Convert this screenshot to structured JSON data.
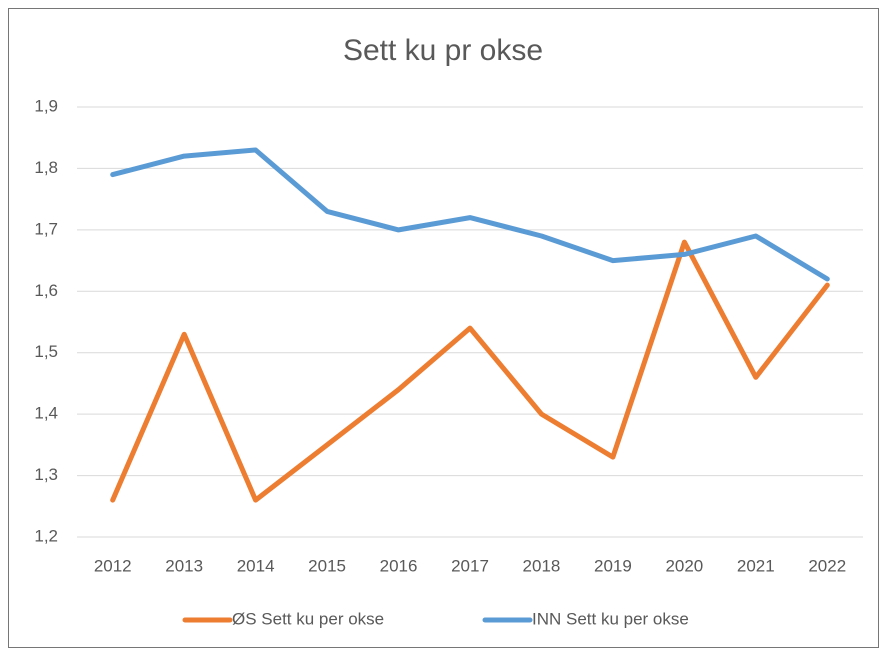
{
  "chart_data": {
    "type": "line",
    "title": "Sett ku pr okse",
    "categories": [
      "2012",
      "2013",
      "2014",
      "2015",
      "2016",
      "2017",
      "2018",
      "2019",
      "2020",
      "2021",
      "2022"
    ],
    "series": [
      {
        "name": "ØS Sett ku per okse",
        "color": "#ed7d31",
        "values": [
          1.26,
          1.53,
          1.26,
          1.35,
          1.44,
          1.54,
          1.4,
          1.33,
          1.68,
          1.46,
          1.61
        ]
      },
      {
        "name": "INN Sett ku per okse",
        "color": "#5b9bd5",
        "values": [
          1.79,
          1.82,
          1.83,
          1.73,
          1.7,
          1.72,
          1.69,
          1.65,
          1.66,
          1.69,
          1.62
        ]
      }
    ],
    "ylim": [
      1.2,
      1.9
    ],
    "yticks": [
      {
        "value": 1.2,
        "label": "1,2"
      },
      {
        "value": 1.3,
        "label": "1,3"
      },
      {
        "value": 1.4,
        "label": "1,4"
      },
      {
        "value": 1.5,
        "label": "1,5"
      },
      {
        "value": 1.6,
        "label": "1,6"
      },
      {
        "value": 1.7,
        "label": "1,7"
      },
      {
        "value": 1.8,
        "label": "1,8"
      },
      {
        "value": 1.9,
        "label": "1,9"
      }
    ],
    "grid": true,
    "legend": "bottom"
  }
}
